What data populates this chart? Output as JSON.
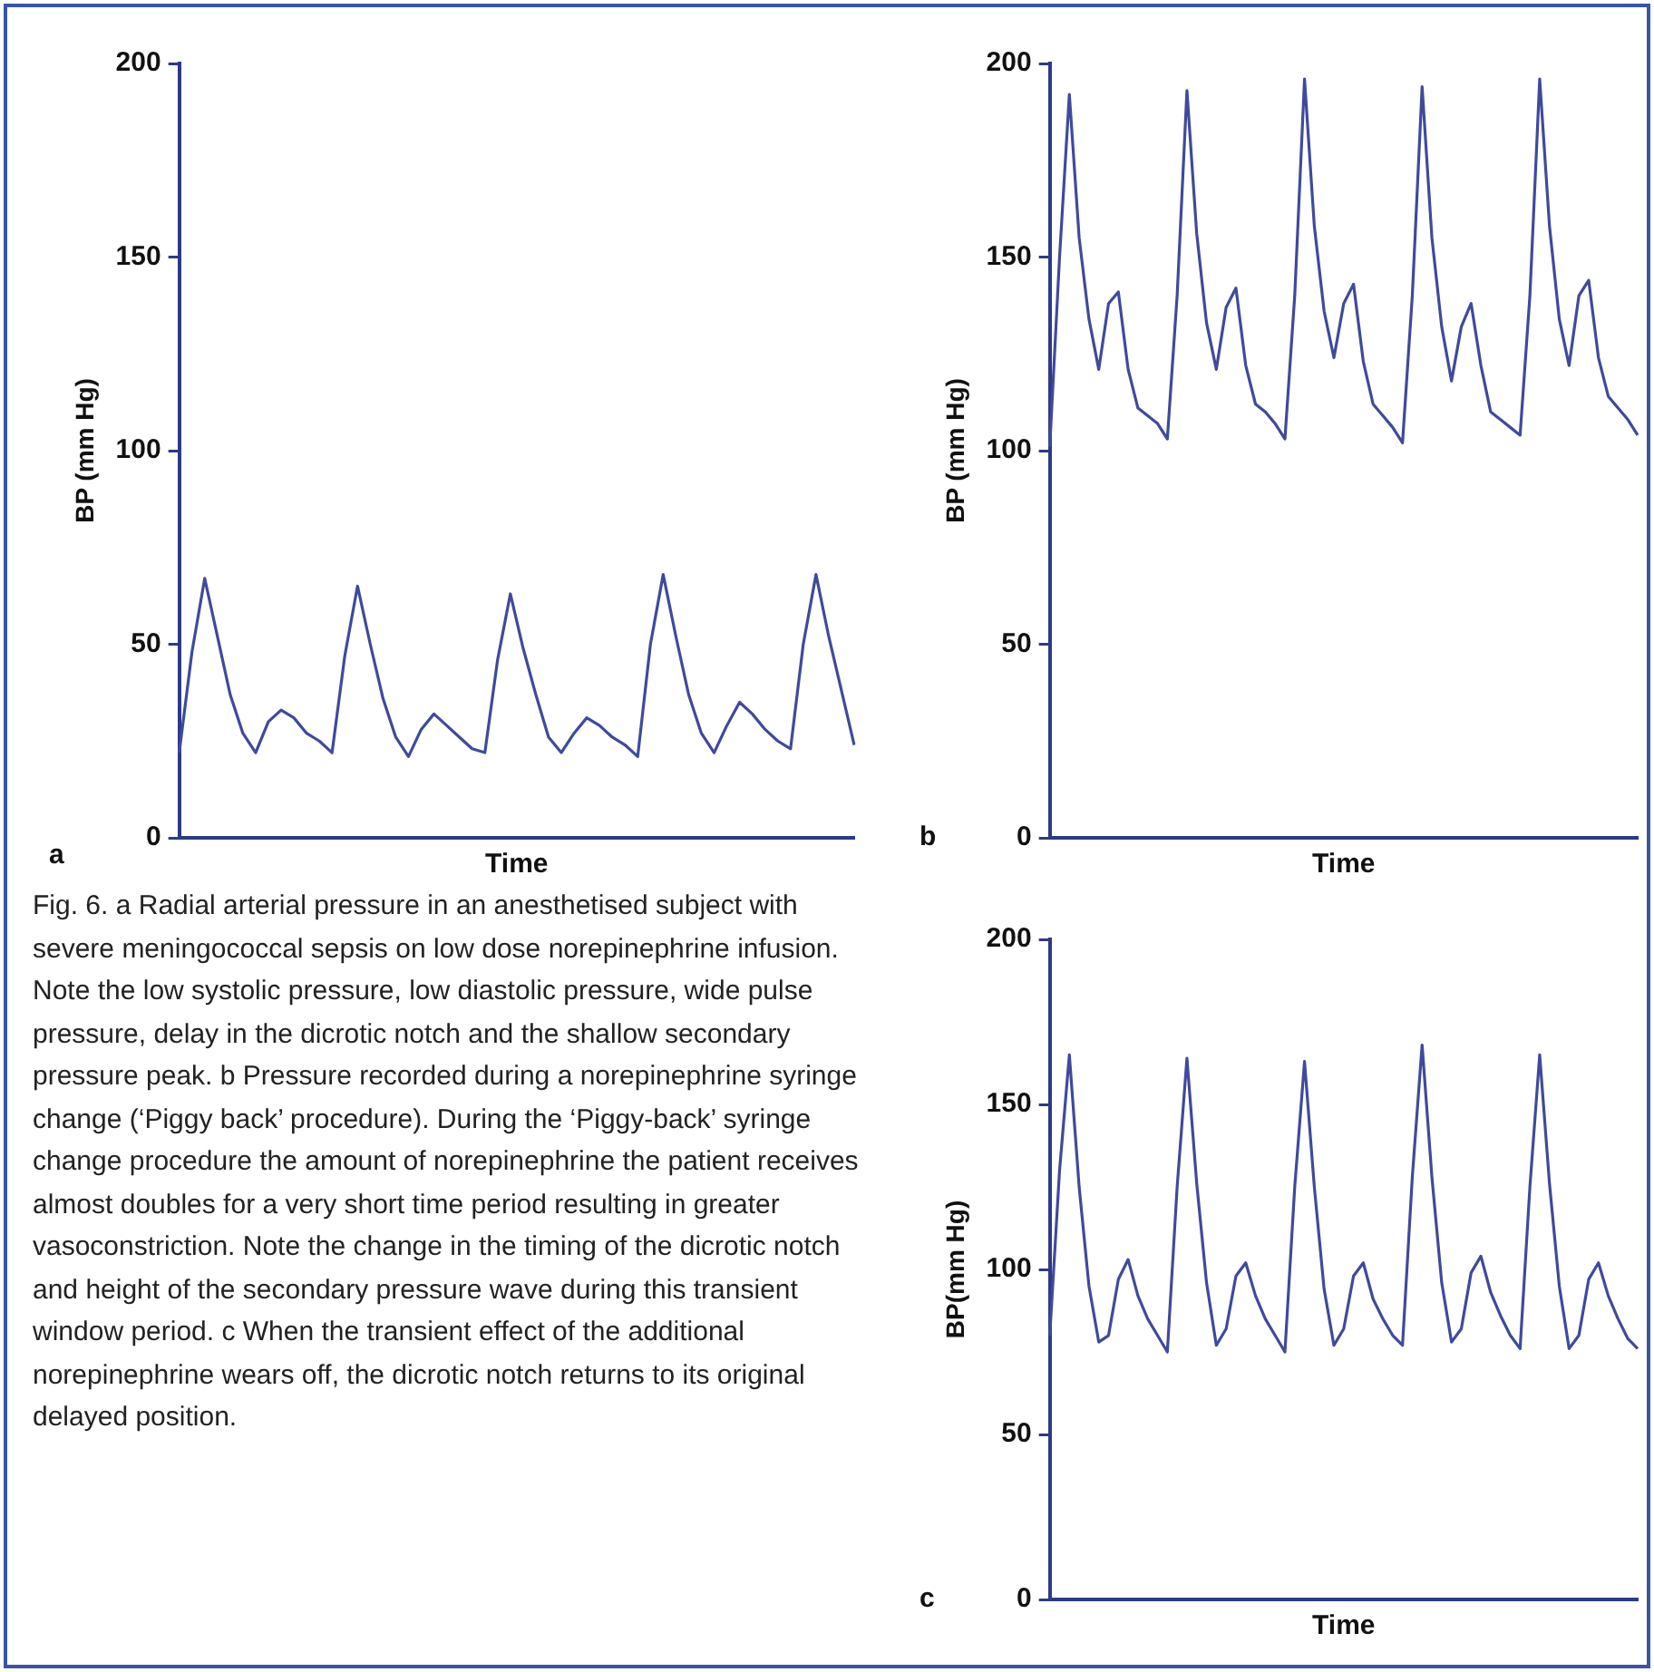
{
  "chart_data": [
    {
      "type": "line",
      "ylabel": "BP (mm Hg)",
      "xlabel": "Time",
      "ylim": [
        0,
        200
      ],
      "yticks": [
        0,
        50,
        100,
        150,
        200
      ],
      "tick_labels": "y",
      "marker": "none",
      "annotations": [
        "a",
        "Fig. 6. a Radial arterial pressure in an anesthetised subject with severe meningococcal sepsis on low dose norepinephrine infusion. Note the low systolic pressure, low diastolic pressure, wide pulse pressure, delay in the dicrotic notch and the shallow secondary pressure peak. b Pressure recorded during a norepinephrine syringe change (‘Piggy back’ procedure). During the ‘Piggy-back’ syringe change procedure the amount of norepinephrine the patient receives almost doubles for a very short time period resulting in greater vasoconstriction. Note the change in the timing of the dicrotic notch and height of the secondary pressure wave during this transient window period. c When the transient effect of the additional norepinephrine wears off, the dicrotic notch returns to its original delayed position."
      ],
      "categories": [
        null,
        null,
        null,
        null,
        null,
        null,
        null,
        null,
        null,
        null,
        null,
        null,
        null,
        null,
        null,
        null,
        null,
        null,
        null,
        null,
        null,
        null,
        null,
        null,
        null,
        null,
        null,
        null,
        null,
        null,
        null,
        null,
        null,
        null,
        null,
        null,
        null,
        null,
        null,
        null,
        null,
        null,
        null,
        null,
        null,
        null,
        null,
        null,
        null,
        null,
        null,
        null,
        null,
        null
      ],
      "series": [
        {
          "color": "#3f4a9c",
          "values": [
            22,
            48,
            67,
            52,
            37,
            27,
            22,
            30,
            33,
            31,
            27,
            25,
            22,
            47,
            65,
            50,
            36,
            26,
            21,
            28,
            32,
            29,
            26,
            23,
            22,
            46,
            63,
            49,
            37,
            26,
            22,
            27,
            31,
            29,
            26,
            24,
            21,
            50,
            68,
            52,
            37,
            27,
            22,
            29,
            35,
            32,
            28,
            25,
            23,
            50,
            68,
            52,
            38,
            24
          ]
        }
      ]
    },
    {
      "type": "line",
      "ylabel": "BP (mm Hg)",
      "xlabel": "Time",
      "ylim": [
        0,
        200
      ],
      "yticks": [
        0,
        50,
        100,
        150,
        200
      ],
      "tick_labels": "y",
      "marker": "none",
      "annotations": [
        "b"
      ],
      "categories": [
        null,
        null,
        null,
        null,
        null,
        null,
        null,
        null,
        null,
        null,
        null,
        null,
        null,
        null,
        null,
        null,
        null,
        null,
        null,
        null,
        null,
        null,
        null,
        null,
        null,
        null,
        null,
        null,
        null,
        null,
        null,
        null,
        null,
        null,
        null,
        null,
        null,
        null,
        null,
        null,
        null,
        null,
        null,
        null,
        null,
        null,
        null,
        null,
        null,
        null,
        null,
        null,
        null,
        null,
        null,
        null,
        null,
        null,
        null,
        null,
        null
      ],
      "series": [
        {
          "color": "#3f4a9c",
          "values": [
            101,
            150,
            192,
            155,
            134,
            121,
            138,
            141,
            121,
            111,
            109,
            107,
            103,
            140,
            193,
            156,
            133,
            121,
            137,
            142,
            122,
            112,
            110,
            107,
            103,
            140,
            196,
            158,
            136,
            124,
            138,
            143,
            123,
            112,
            109,
            106,
            102,
            140,
            194,
            155,
            132,
            118,
            132,
            138,
            122,
            110,
            108,
            106,
            104,
            140,
            196,
            158,
            134,
            122,
            140,
            144,
            124,
            114,
            111,
            108,
            104
          ]
        }
      ]
    },
    {
      "type": "line",
      "ylabel": "BP(mm Hg)",
      "xlabel": "Time",
      "ylim": [
        0,
        200
      ],
      "yticks": [
        0,
        50,
        100,
        150,
        200
      ],
      "tick_labels": "y",
      "marker": "none",
      "annotations": [
        "c"
      ],
      "categories": [
        null,
        null,
        null,
        null,
        null,
        null,
        null,
        null,
        null,
        null,
        null,
        null,
        null,
        null,
        null,
        null,
        null,
        null,
        null,
        null,
        null,
        null,
        null,
        null,
        null,
        null,
        null,
        null,
        null,
        null,
        null,
        null,
        null,
        null,
        null,
        null,
        null,
        null,
        null,
        null,
        null,
        null,
        null,
        null,
        null,
        null,
        null,
        null,
        null,
        null,
        null,
        null,
        null,
        null,
        null,
        null,
        null,
        null,
        null,
        null,
        null
      ],
      "series": [
        {
          "color": "#3f4a9c",
          "values": [
            80,
            130,
            165,
            125,
            95,
            78,
            80,
            97,
            103,
            92,
            85,
            80,
            75,
            125,
            164,
            126,
            96,
            77,
            82,
            98,
            102,
            92,
            85,
            80,
            75,
            125,
            163,
            125,
            94,
            77,
            82,
            98,
            102,
            91,
            85,
            80,
            77,
            128,
            168,
            128,
            96,
            78,
            82,
            99,
            104,
            93,
            86,
            80,
            76,
            125,
            165,
            126,
            95,
            76,
            80,
            97,
            102,
            92,
            85,
            79,
            76
          ]
        }
      ]
    }
  ]
}
